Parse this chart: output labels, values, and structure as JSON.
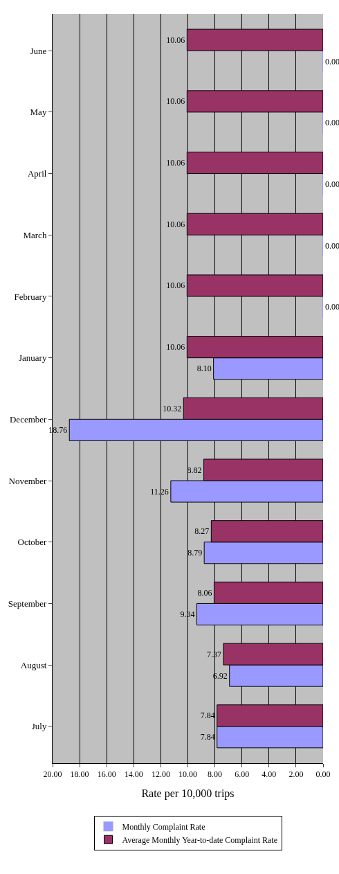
{
  "chart_data": {
    "type": "bar",
    "orientation": "horizontal",
    "xlabel": "Rate per 10,000 trips",
    "categories": [
      "June",
      "May",
      "April",
      "March",
      "February",
      "January",
      "December",
      "November",
      "October",
      "September",
      "August",
      "July"
    ],
    "series": [
      {
        "name": "Monthly Complaint Rate",
        "color": "#9999ff",
        "values": [
          0,
          0,
          0,
          0,
          0,
          8.1,
          18.76,
          11.26,
          8.79,
          9.34,
          6.92,
          7.84
        ],
        "value_labels": [
          "0.00",
          "0.00",
          "0.00",
          "0.00",
          "0.00",
          "8.10",
          "18.76",
          "11.26",
          "8.79",
          "9.34",
          "6.92",
          "7.84"
        ]
      },
      {
        "name": "Average Monthly Year-to-date Complaint Rate",
        "color": "#993366",
        "values": [
          10.06,
          10.06,
          10.06,
          10.06,
          10.06,
          10.06,
          10.32,
          8.82,
          8.27,
          8.06,
          7.37,
          7.84
        ],
        "value_labels": [
          "10.06",
          "10.06",
          "10.06",
          "10.06",
          "10.06",
          "10.06",
          "10.32",
          "8.82",
          "8.27",
          "8.06",
          "7.37",
          "7.84"
        ]
      }
    ],
    "xlim": [
      20,
      0
    ],
    "xticks": [
      {
        "value": 20,
        "label": "20.00"
      },
      {
        "value": 18,
        "label": "18.00"
      },
      {
        "value": 16,
        "label": "16.00"
      },
      {
        "value": 14,
        "label": "14.00"
      },
      {
        "value": 12,
        "label": "12.00"
      },
      {
        "value": 10,
        "label": "10.00"
      },
      {
        "value": 8,
        "label": "8.00"
      },
      {
        "value": 6,
        "label": "6.00"
      },
      {
        "value": 4,
        "label": "4.00"
      },
      {
        "value": 2,
        "label": "2.00"
      },
      {
        "value": 0,
        "label": "0.00"
      }
    ],
    "grid": "x",
    "legend": "bottom"
  }
}
